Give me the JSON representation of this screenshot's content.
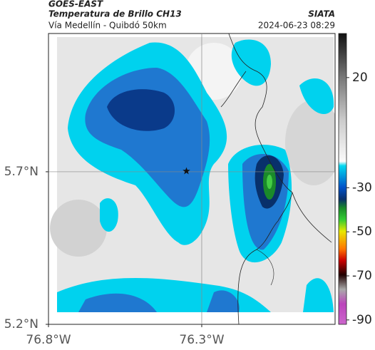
{
  "map": {
    "title": "GOES-EAST",
    "subtitle": "Temperatura de Brillo CH13",
    "route": "Vía Medellín - Quibdó 50km",
    "source": "SIATA",
    "timestamp": "2024-06-23 08:29",
    "xlim": [
      -76.8,
      -75.865
    ],
    "ylim": [
      5.2,
      6.153
    ],
    "xticks": [
      {
        "value": -76.8,
        "label": "76.8°W"
      },
      {
        "value": -76.3,
        "label": "76.3°W"
      }
    ],
    "yticks": [
      {
        "value": 5.7,
        "label": "5.7°N"
      },
      {
        "value": 5.2,
        "label": "5.2°N"
      }
    ],
    "grid": true,
    "marker": {
      "lon": -76.35,
      "lat": 5.702
    },
    "colorbar": {
      "lim": [
        -92,
        40
      ],
      "ticks": [
        20,
        -30,
        -50,
        -70,
        -90
      ]
    }
  }
}
